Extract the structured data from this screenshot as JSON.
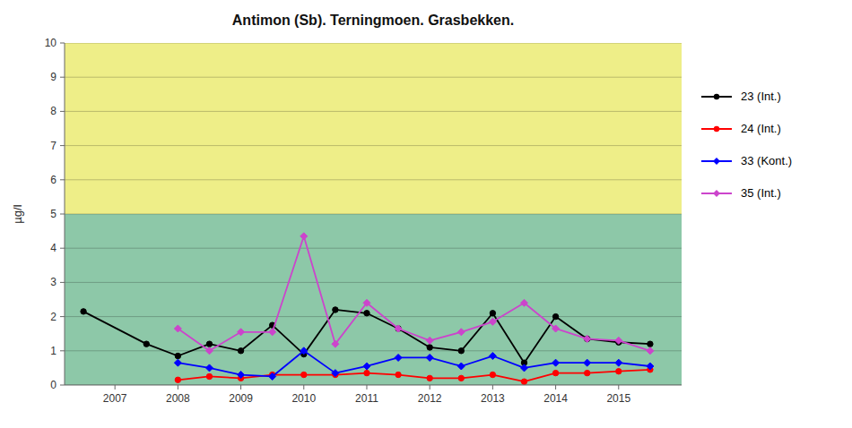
{
  "chart_data": {
    "type": "line",
    "title": "Antimon (Sb). Terningmoen. Grasbekken.",
    "y_label": "µg/l",
    "xlim": [
      2006.2,
      2016.0
    ],
    "xticks": [
      2007,
      2008,
      2009,
      2010,
      2011,
      2012,
      2013,
      2014,
      2015
    ],
    "ylim": [
      0,
      10
    ],
    "yticks": [
      0,
      1,
      2,
      3,
      4,
      5,
      6,
      7,
      8,
      9,
      10
    ],
    "grid": true,
    "legend": "right",
    "bands": [
      {
        "from": 5,
        "to": 10,
        "color": "#EEEE88"
      },
      {
        "from": 0,
        "to": 5,
        "color": "#8DC8A8"
      }
    ],
    "series": [
      {
        "name": "23 (Int.)",
        "color": "#000000",
        "marker": "circle",
        "x": [
          2006.5,
          2007.5,
          2008.0,
          2008.5,
          2009.0,
          2009.5,
          2010.0,
          2010.5,
          2011.0,
          2011.5,
          2012.0,
          2012.5,
          2013.0,
          2013.5,
          2014.0,
          2014.5,
          2015.0,
          2015.5
        ],
        "values": [
          2.15,
          1.2,
          0.85,
          1.2,
          1.0,
          1.75,
          0.9,
          2.2,
          2.1,
          1.65,
          1.1,
          1.0,
          2.1,
          0.65,
          2.0,
          1.35,
          1.25,
          1.2
        ]
      },
      {
        "name": "24 (Int.)",
        "color": "#FF0000",
        "marker": "circle",
        "x": [
          2008.0,
          2008.5,
          2009.0,
          2009.5,
          2010.0,
          2010.5,
          2011.0,
          2011.5,
          2012.0,
          2012.5,
          2013.0,
          2013.5,
          2014.0,
          2014.5,
          2015.0,
          2015.5
        ],
        "values": [
          0.15,
          0.25,
          0.2,
          0.3,
          0.3,
          0.3,
          0.35,
          0.3,
          0.2,
          0.2,
          0.3,
          0.1,
          0.35,
          0.35,
          0.4,
          0.45
        ]
      },
      {
        "name": "33 (Kont.)",
        "color": "#0000FF",
        "marker": "diamond",
        "x": [
          2008.0,
          2008.5,
          2009.0,
          2009.5,
          2010.0,
          2010.5,
          2011.0,
          2011.5,
          2012.0,
          2012.5,
          2013.0,
          2013.5,
          2014.0,
          2014.5,
          2015.0,
          2015.5
        ],
        "values": [
          0.65,
          0.5,
          0.3,
          0.25,
          1.0,
          0.35,
          0.55,
          0.8,
          0.8,
          0.55,
          0.85,
          0.5,
          0.65,
          0.65,
          0.65,
          0.55
        ]
      },
      {
        "name": "35 (Int.)",
        "color": "#CC44CC",
        "marker": "diamond",
        "x": [
          2008.0,
          2008.5,
          2009.0,
          2009.5,
          2010.0,
          2010.5,
          2011.0,
          2011.5,
          2012.0,
          2012.5,
          2013.0,
          2013.5,
          2014.0,
          2014.5,
          2015.0,
          2015.5
        ],
        "values": [
          1.65,
          1.0,
          1.55,
          1.55,
          4.35,
          1.2,
          2.4,
          1.65,
          1.3,
          1.55,
          1.85,
          2.4,
          1.65,
          1.35,
          1.3,
          1.0
        ]
      }
    ]
  }
}
